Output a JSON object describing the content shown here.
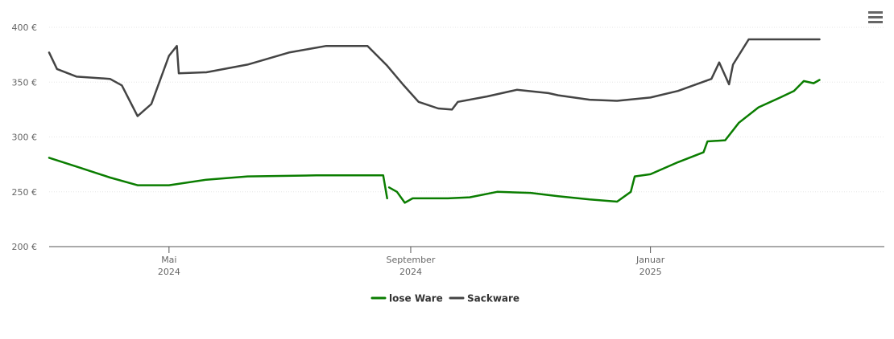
{
  "menu": {
    "icon": "hamburger-menu-icon"
  },
  "chart_data": {
    "type": "line",
    "title": "",
    "xlabel": "",
    "ylabel": "",
    "ylim": [
      200,
      400
    ],
    "xlim": [
      "2024-03-01",
      "2025-04-30"
    ],
    "y_ticks": [
      {
        "value": 200,
        "label": "200 €"
      },
      {
        "value": 250,
        "label": "250 €"
      },
      {
        "value": 300,
        "label": "300 €"
      },
      {
        "value": 350,
        "label": "350 €"
      },
      {
        "value": 400,
        "label": "400 €"
      }
    ],
    "x_ticks": [
      {
        "date": "2024-05-01",
        "line1": "Mai",
        "line2": "2024"
      },
      {
        "date": "2024-09-01",
        "line1": "September",
        "line2": "2024"
      },
      {
        "date": "2025-01-01",
        "line1": "Januar",
        "line2": "2025"
      }
    ],
    "grid": true,
    "legend_position": "bottom-center",
    "series": [
      {
        "name": "lose Ware",
        "color": "#0a7d00",
        "segments": [
          [
            [
              "2024-03-01",
              281
            ],
            [
              "2024-03-15",
              273
            ],
            [
              "2024-04-01",
              263
            ],
            [
              "2024-04-15",
              256
            ],
            [
              "2024-05-01",
              256
            ],
            [
              "2024-05-20",
              261
            ],
            [
              "2024-06-10",
              264
            ],
            [
              "2024-07-15",
              265
            ],
            [
              "2024-08-10",
              265
            ],
            [
              "2024-08-18",
              265
            ],
            [
              "2024-08-20",
              244
            ]
          ],
          [
            [
              "2024-08-21",
              254
            ],
            [
              "2024-08-25",
              250
            ],
            [
              "2024-08-29",
              240
            ],
            [
              "2024-09-02",
              244
            ],
            [
              "2024-09-20",
              244
            ],
            [
              "2024-10-01",
              245
            ],
            [
              "2024-10-15",
              250
            ],
            [
              "2024-11-01",
              249
            ],
            [
              "2024-11-15",
              246
            ],
            [
              "2024-12-01",
              243
            ],
            [
              "2024-12-15",
              241
            ],
            [
              "2024-12-22",
              250
            ],
            [
              "2024-12-24",
              264
            ],
            [
              "2025-01-01",
              266
            ],
            [
              "2025-01-15",
              277
            ],
            [
              "2025-01-28",
              286
            ],
            [
              "2025-01-30",
              296
            ],
            [
              "2025-02-08",
              297
            ],
            [
              "2025-02-15",
              313
            ],
            [
              "2025-02-25",
              327
            ],
            [
              "2025-03-08",
              336
            ],
            [
              "2025-03-15",
              342
            ],
            [
              "2025-03-20",
              351
            ],
            [
              "2025-03-25",
              349
            ],
            [
              "2025-03-28",
              352
            ]
          ]
        ]
      },
      {
        "name": "Sackware",
        "color": "#444444",
        "segments": [
          [
            [
              "2024-03-01",
              377
            ],
            [
              "2024-03-05",
              362
            ],
            [
              "2024-03-15",
              355
            ],
            [
              "2024-04-01",
              353
            ],
            [
              "2024-04-07",
              347
            ],
            [
              "2024-04-15",
              319
            ],
            [
              "2024-04-22",
              330
            ],
            [
              "2024-05-01",
              374
            ],
            [
              "2024-05-05",
              383
            ],
            [
              "2024-05-06",
              358
            ],
            [
              "2024-05-20",
              359
            ],
            [
              "2024-06-10",
              366
            ],
            [
              "2024-07-01",
              377
            ],
            [
              "2024-07-20",
              383
            ],
            [
              "2024-08-10",
              383
            ],
            [
              "2024-08-20",
              365
            ],
            [
              "2024-08-28",
              348
            ],
            [
              "2024-09-05",
              332
            ],
            [
              "2024-09-15",
              326
            ],
            [
              "2024-09-22",
              325
            ],
            [
              "2024-09-25",
              332
            ],
            [
              "2024-10-10",
              337
            ],
            [
              "2024-10-25",
              343
            ],
            [
              "2024-11-10",
              340
            ],
            [
              "2024-11-15",
              338
            ],
            [
              "2024-12-01",
              334
            ],
            [
              "2024-12-15",
              333
            ],
            [
              "2025-01-01",
              336
            ],
            [
              "2025-01-15",
              342
            ],
            [
              "2025-02-01",
              353
            ],
            [
              "2025-02-05",
              368
            ],
            [
              "2025-02-10",
              348
            ],
            [
              "2025-02-12",
              366
            ],
            [
              "2025-02-20",
              389
            ],
            [
              "2025-03-28",
              389
            ]
          ]
        ]
      }
    ]
  }
}
